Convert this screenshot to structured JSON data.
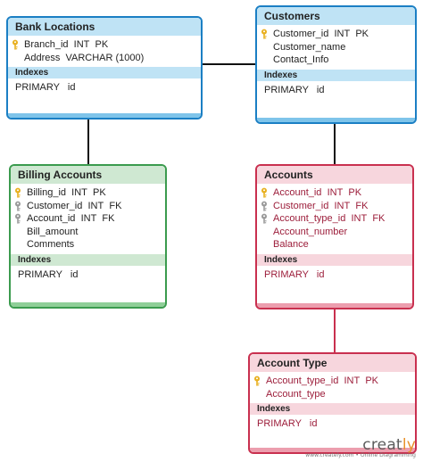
{
  "tables": [
    {
      "key": "bank_locations",
      "title": "Bank Locations",
      "theme": "blue",
      "fields": [
        {
          "name": "Branch_id",
          "type": "INT",
          "key": "PK",
          "icon": "primary-key-icon"
        },
        {
          "name": "Address",
          "type": "VARCHAR (1000)",
          "key": "",
          "icon": ""
        }
      ],
      "indexes_label": "Indexes",
      "indexes": [
        "PRIMARY   id"
      ]
    },
    {
      "key": "customers",
      "title": "Customers",
      "theme": "blue",
      "fields": [
        {
          "name": "Customer_id",
          "type": "INT",
          "key": "PK",
          "icon": "primary-key-icon"
        },
        {
          "name": "Customer_name",
          "type": "",
          "key": "",
          "icon": ""
        },
        {
          "name": "Contact_Info",
          "type": "",
          "key": "",
          "icon": ""
        }
      ],
      "indexes_label": "Indexes",
      "indexes": [
        "PRIMARY   id"
      ]
    },
    {
      "key": "billing_accounts",
      "title": "Billing Accounts",
      "theme": "green",
      "fields": [
        {
          "name": "Billing_id",
          "type": "INT",
          "key": "PK",
          "icon": "primary-key-icon"
        },
        {
          "name": "Customer_id",
          "type": "INT",
          "key": "FK",
          "icon": "foreign-key-icon"
        },
        {
          "name": "Account_id",
          "type": "INT",
          "key": "FK",
          "icon": "foreign-key-icon"
        },
        {
          "name": "Bill_amount",
          "type": "",
          "key": "",
          "icon": ""
        },
        {
          "name": "Comments",
          "type": "",
          "key": "",
          "icon": ""
        }
      ],
      "indexes_label": "Indexes",
      "indexes": [
        "PRIMARY   id"
      ]
    },
    {
      "key": "accounts",
      "title": "Accounts",
      "theme": "red",
      "fields": [
        {
          "name": "Account_id",
          "type": "INT",
          "key": "PK",
          "icon": "primary-key-icon"
        },
        {
          "name": "Customer_id",
          "type": "INT",
          "key": "FK",
          "icon": "foreign-key-icon"
        },
        {
          "name": "Account_type_id",
          "type": "INT",
          "key": "FK",
          "icon": "foreign-key-icon"
        },
        {
          "name": "Account_number",
          "type": "",
          "key": "",
          "icon": ""
        },
        {
          "name": "Balance",
          "type": "",
          "key": "",
          "icon": ""
        }
      ],
      "indexes_label": "Indexes",
      "indexes": [
        "PRIMARY   id"
      ]
    },
    {
      "key": "account_type",
      "title": "Account Type",
      "theme": "red",
      "fields": [
        {
          "name": "Account_type_id",
          "type": "INT",
          "key": "PK",
          "icon": "primary-key-icon"
        },
        {
          "name": "Account_type",
          "type": "",
          "key": "",
          "icon": ""
        }
      ],
      "indexes_label": "Indexes",
      "indexes": [
        "PRIMARY   id"
      ]
    }
  ],
  "relationships": [
    {
      "from": "bank_locations",
      "to": "customers"
    },
    {
      "from": "bank_locations",
      "to": "billing_accounts"
    },
    {
      "from": "customers",
      "to": "accounts"
    },
    {
      "from": "accounts",
      "to": "account_type"
    }
  ],
  "colors": {
    "blue_border": "#1b7fc4",
    "green_border": "#3b9b4e",
    "red_border": "#c9304f",
    "connector": "#111111",
    "connector_red": "#c9304f",
    "primary_key": "#e8b020",
    "foreign_key": "#9a9a9a"
  },
  "watermark": {
    "main_prefix": "creat",
    "main_suffix": "ly",
    "sub": "www.creately.com • Online Diagramming"
  }
}
